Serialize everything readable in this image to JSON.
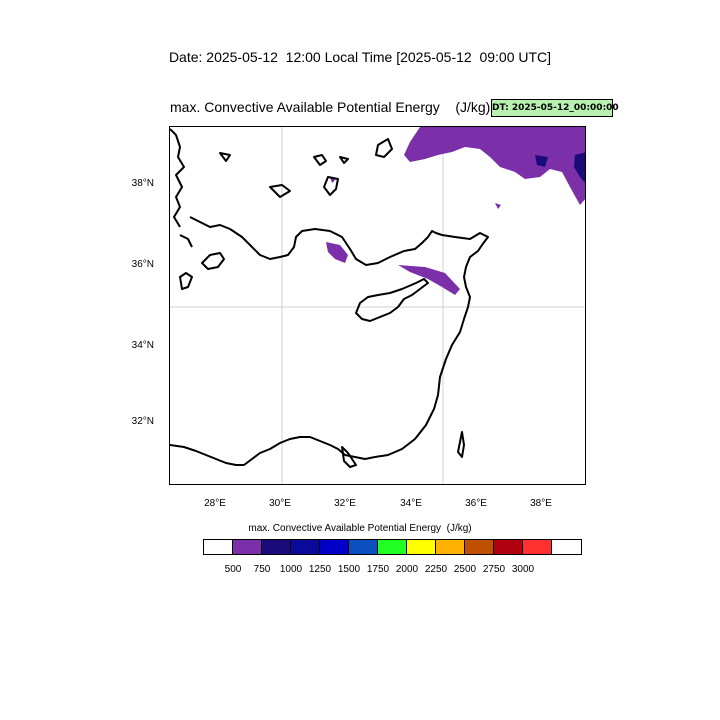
{
  "header": {
    "date_line": "Date: 2025-05-12  12:00 Local Time [2025-05-12  09:00 UTC]"
  },
  "plot": {
    "title": "max. Convective Available Potential Energy    (J/kg)",
    "dt_badge": "DT: 2025-05-12_00:00:00",
    "dt_badge_color": "#b8f0b0",
    "grid": true
  },
  "map": {
    "lat_ticks": [
      "38°N",
      "36°N",
      "34°N",
      "32°N"
    ],
    "lon_ticks": [
      "28°E",
      "30°E",
      "32°E",
      "34°E",
      "36°E",
      "38°E"
    ],
    "lat_range": [
      30.4,
      39.4
    ],
    "lon_range": [
      26.6,
      39.4
    ],
    "cape_color_visible": "#7b2fa8"
  },
  "colorbar": {
    "title": "max. Convective Available Potential Energy  (J/kg)",
    "colors": [
      "#ffffff",
      "#7b2fa8",
      "#1a0a7a",
      "#0a0a9a",
      "#0000c8",
      "#0a50c0",
      "#22ff22",
      "#ffff00",
      "#ffb000",
      "#c05000",
      "#b00010",
      "#ff3030",
      "#ffffff"
    ],
    "labels": [
      "500",
      "750",
      "1000",
      "1250",
      "1500",
      "1750",
      "2000",
      "2250",
      "2500",
      "2750",
      "3000"
    ]
  }
}
